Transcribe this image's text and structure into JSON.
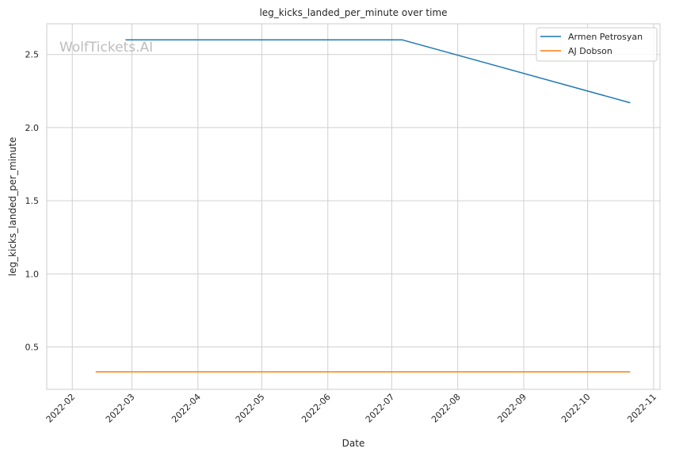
{
  "chart_data": {
    "type": "line",
    "title": "leg_kicks_landed_per_minute over time",
    "xlabel": "Date",
    "ylabel": "leg_kicks_landed_per_minute",
    "watermark": "WolfTickets.AI",
    "x_ticks": [
      "2022-02",
      "2022-03",
      "2022-04",
      "2022-05",
      "2022-06",
      "2022-07",
      "2022-08",
      "2022-09",
      "2022-10",
      "2022-11"
    ],
    "y_ticks": [
      "0.5",
      "1.0",
      "1.5",
      "2.0",
      "2.5"
    ],
    "ylim": [
      0.21,
      2.71
    ],
    "xlim": [
      "2022-01-20",
      "2022-11-04"
    ],
    "grid": true,
    "legend_position": "top-right",
    "series": [
      {
        "name": "Armen Petrosyan",
        "color": "#1f77b4",
        "points": [
          {
            "x": "2022-02-26",
            "y": 2.6
          },
          {
            "x": "2022-07-06",
            "y": 2.6
          },
          {
            "x": "2022-10-21",
            "y": 2.17
          }
        ]
      },
      {
        "name": "AJ Dobson",
        "color": "#ff7f0e",
        "points": [
          {
            "x": "2022-02-12",
            "y": 0.33
          },
          {
            "x": "2022-10-21",
            "y": 0.33
          }
        ]
      }
    ]
  }
}
